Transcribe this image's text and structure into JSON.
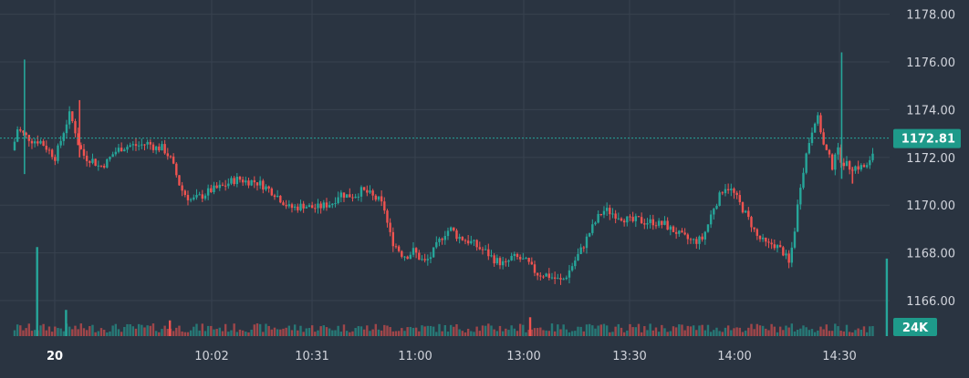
{
  "chart_data": {
    "type": "candlestick",
    "x_ticks": [
      {
        "label": "20",
        "bold": true
      },
      {
        "label": "10:02"
      },
      {
        "label": "10:31"
      },
      {
        "label": "11:00"
      },
      {
        "label": "13:00"
      },
      {
        "label": "13:30"
      },
      {
        "label": "14:00"
      },
      {
        "label": "14:30"
      }
    ],
    "y_ticks": [
      "1166.00",
      "1168.00",
      "1170.00",
      "1172.00",
      "1174.00",
      "1176.00",
      "1178.00"
    ],
    "ylim": [
      1164.5,
      1178.5
    ],
    "last_price": 1172.81,
    "last_price_label": "1172.81",
    "volume_label": "24K",
    "grid": true,
    "colors": {
      "background": "#2a3441",
      "up": "#26a69a",
      "down": "#ef5350",
      "grid": "#38424f",
      "badge": "#1e9a8a"
    },
    "price_path": [
      [
        0,
        1172.3
      ],
      [
        5,
        1173.2
      ],
      [
        14,
        1172.9
      ],
      [
        18,
        1172.8
      ],
      [
        22,
        1172.7
      ],
      [
        30,
        1172.7
      ],
      [
        40,
        1172.3
      ],
      [
        47,
        1172.0
      ],
      [
        54,
        1172.8
      ],
      [
        58,
        1173.3
      ],
      [
        63,
        1173.8
      ],
      [
        68,
        1173.3
      ],
      [
        73,
        1172.5
      ],
      [
        80,
        1172.0
      ],
      [
        88,
        1171.9
      ],
      [
        96,
        1171.6
      ],
      [
        104,
        1171.8
      ],
      [
        112,
        1172.2
      ],
      [
        120,
        1172.4
      ],
      [
        130,
        1172.5
      ],
      [
        140,
        1172.5
      ],
      [
        150,
        1172.6
      ],
      [
        158,
        1172.4
      ],
      [
        166,
        1172.4
      ],
      [
        174,
        1172.0
      ],
      [
        180,
        1171.4
      ],
      [
        186,
        1170.7
      ],
      [
        192,
        1170.4
      ],
      [
        198,
        1170.2
      ],
      [
        204,
        1170.3
      ],
      [
        210,
        1170.4
      ],
      [
        218,
        1170.6
      ],
      [
        226,
        1170.7
      ],
      [
        234,
        1170.8
      ],
      [
        242,
        1171.0
      ],
      [
        250,
        1171.1
      ],
      [
        258,
        1171.0
      ],
      [
        266,
        1171.0
      ],
      [
        274,
        1170.9
      ],
      [
        282,
        1170.7
      ],
      [
        290,
        1170.5
      ],
      [
        298,
        1170.2
      ],
      [
        306,
        1169.9
      ],
      [
        314,
        1169.9
      ],
      [
        322,
        1170.0
      ],
      [
        330,
        1169.9
      ],
      [
        338,
        1169.9
      ],
      [
        346,
        1170.0
      ],
      [
        354,
        1170.1
      ],
      [
        362,
        1170.5
      ],
      [
        370,
        1170.4
      ],
      [
        378,
        1170.4
      ],
      [
        386,
        1170.6
      ],
      [
        394,
        1170.5
      ],
      [
        400,
        1170.3
      ],
      [
        406,
        1170.2
      ],
      [
        412,
        1169.8
      ],
      [
        416,
        1169.0
      ],
      [
        420,
        1168.5
      ],
      [
        426,
        1168.2
      ],
      [
        432,
        1167.9
      ],
      [
        438,
        1167.9
      ],
      [
        444,
        1168.1
      ],
      [
        450,
        1167.8
      ],
      [
        456,
        1167.6
      ],
      [
        462,
        1167.8
      ],
      [
        468,
        1168.2
      ],
      [
        474,
        1168.6
      ],
      [
        480,
        1168.9
      ],
      [
        486,
        1169.0
      ],
      [
        492,
        1168.7
      ],
      [
        498,
        1168.6
      ],
      [
        504,
        1168.5
      ],
      [
        510,
        1168.4
      ],
      [
        516,
        1168.2
      ],
      [
        522,
        1168.1
      ],
      [
        528,
        1167.9
      ],
      [
        534,
        1167.7
      ],
      [
        540,
        1167.6
      ],
      [
        546,
        1167.5
      ],
      [
        552,
        1167.8
      ],
      [
        558,
        1167.8
      ],
      [
        564,
        1167.7
      ],
      [
        570,
        1167.6
      ],
      [
        576,
        1167.3
      ],
      [
        582,
        1167.1
      ],
      [
        590,
        1167.1
      ],
      [
        596,
        1167.0
      ],
      [
        602,
        1166.9
      ],
      [
        608,
        1166.8
      ],
      [
        614,
        1167.1
      ],
      [
        620,
        1167.5
      ],
      [
        626,
        1167.9
      ],
      [
        632,
        1168.3
      ],
      [
        638,
        1168.8
      ],
      [
        644,
        1169.2
      ],
      [
        650,
        1169.6
      ],
      [
        656,
        1169.8
      ],
      [
        662,
        1169.7
      ],
      [
        668,
        1169.6
      ],
      [
        674,
        1169.5
      ],
      [
        680,
        1169.4
      ],
      [
        686,
        1169.3
      ],
      [
        692,
        1169.4
      ],
      [
        698,
        1169.3
      ],
      [
        704,
        1169.3
      ],
      [
        710,
        1169.3
      ],
      [
        716,
        1169.2
      ],
      [
        722,
        1169.2
      ],
      [
        728,
        1169.0
      ],
      [
        734,
        1168.9
      ],
      [
        740,
        1168.7
      ],
      [
        746,
        1168.6
      ],
      [
        752,
        1168.5
      ],
      [
        758,
        1168.5
      ],
      [
        764,
        1168.6
      ],
      [
        770,
        1169.2
      ],
      [
        776,
        1169.9
      ],
      [
        782,
        1170.3
      ],
      [
        788,
        1170.8
      ],
      [
        794,
        1170.7
      ],
      [
        800,
        1170.4
      ],
      [
        806,
        1170.0
      ],
      [
        812,
        1169.6
      ],
      [
        818,
        1169.2
      ],
      [
        824,
        1168.7
      ],
      [
        830,
        1168.5
      ],
      [
        836,
        1168.3
      ],
      [
        842,
        1168.4
      ],
      [
        848,
        1168.2
      ],
      [
        854,
        1168.0
      ],
      [
        860,
        1167.5
      ],
      [
        866,
        1169.0
      ],
      [
        872,
        1170.8
      ],
      [
        878,
        1172.0
      ],
      [
        884,
        1173.0
      ],
      [
        890,
        1173.8
      ],
      [
        894,
        1173.3
      ],
      [
        898,
        1172.5
      ],
      [
        904,
        1172.0
      ],
      [
        908,
        1171.6
      ],
      [
        912,
        1172.5
      ],
      [
        916,
        1172.0
      ],
      [
        920,
        1171.8
      ],
      [
        926,
        1171.6
      ],
      [
        932,
        1171.6
      ],
      [
        940,
        1171.6
      ],
      [
        948,
        1171.6
      ],
      [
        956,
        1172.7
      ],
      [
        960,
        1171.7
      ]
    ],
    "spikes": [
      {
        "x": 13,
        "low": 1171.3,
        "high": 1176.1,
        "up": true
      },
      {
        "x": 74,
        "low": 1172.0,
        "high": 1174.4,
        "up": false
      },
      {
        "x": 918,
        "low": 1171.1,
        "high": 1176.4,
        "up": true
      },
      {
        "x": 930,
        "low": 1170.9,
        "high": 1171.6,
        "up": false
      }
    ],
    "volume_spikes": [
      {
        "x": 27,
        "v": 0.85,
        "up": true
      },
      {
        "x": 59,
        "v": 0.25,
        "up": true
      },
      {
        "x": 174,
        "v": 0.15,
        "up": false
      },
      {
        "x": 573,
        "v": 0.18,
        "up": false
      },
      {
        "x": 968,
        "v": 0.74,
        "up": true
      }
    ]
  }
}
